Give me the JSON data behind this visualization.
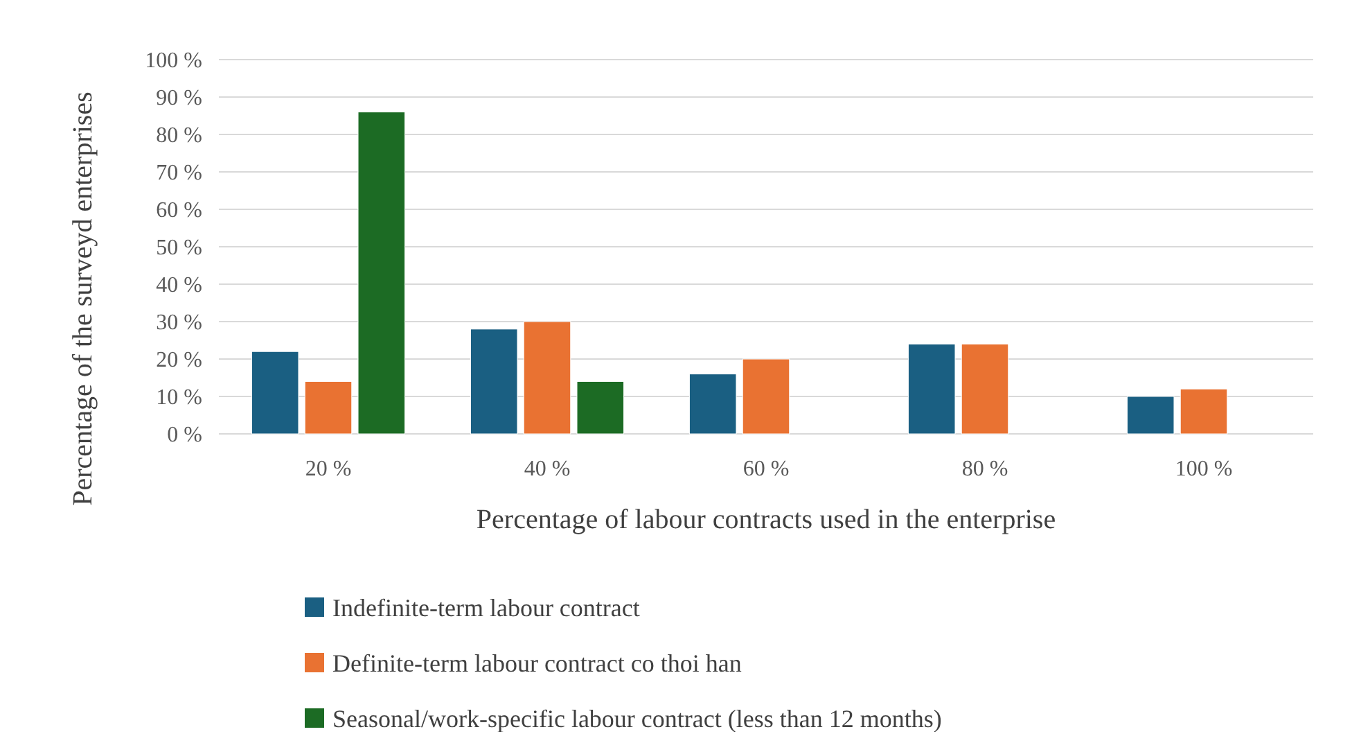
{
  "chart_data": {
    "type": "bar",
    "xlabel": "Percentage of labour contracts used in the enterprise",
    "ylabel": "Percentage of the surveyd enterprises",
    "categories": [
      "20 %",
      "40 %",
      "60 %",
      "80 %",
      "100 %"
    ],
    "series": [
      {
        "name": "Indefinite-term labour contract",
        "color": "#1a5f82",
        "values": [
          22,
          28,
          16,
          24,
          10
        ]
      },
      {
        "name": "Definite-term labour contract co thoi han",
        "color": "#e97232",
        "values": [
          14,
          30,
          20,
          24,
          12
        ]
      },
      {
        "name": "Seasonal/work-specific labour contract (less than 12 months)",
        "color": "#1c6b24",
        "values": [
          86,
          14,
          0,
          0,
          0
        ]
      }
    ],
    "ylim": [
      0,
      100
    ],
    "yticks": [
      {
        "value": 0,
        "label": "0 %"
      },
      {
        "value": 10,
        "label": "10 %"
      },
      {
        "value": 20,
        "label": "20 %"
      },
      {
        "value": 30,
        "label": "30 %"
      },
      {
        "value": 40,
        "label": "40 %"
      },
      {
        "value": 50,
        "label": "50 %"
      },
      {
        "value": 60,
        "label": "60 %"
      },
      {
        "value": 70,
        "label": "70 %"
      },
      {
        "value": 80,
        "label": "80 %"
      },
      {
        "value": 90,
        "label": "90 %"
      },
      {
        "value": 100,
        "label": "100 %"
      }
    ],
    "grid": "y",
    "legend": "bottom"
  }
}
